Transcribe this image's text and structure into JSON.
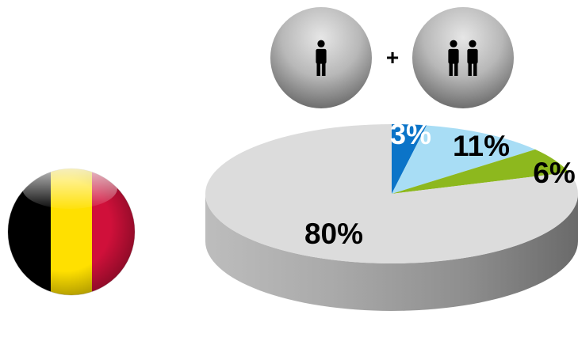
{
  "flag": {
    "country_icon": "belgium-flag-icon",
    "colors": [
      "#000000",
      "#FFE000",
      "#D0103A"
    ]
  },
  "icons": {
    "left_circle": "single-person-icon",
    "operator": "+",
    "right_circle": "two-people-icon"
  },
  "chart_data": {
    "type": "pie",
    "title": "",
    "style": "3d",
    "values": [
      3,
      11,
      6,
      80
    ],
    "labels": [
      "3%",
      "11%",
      "6%",
      "80%"
    ],
    "colors": [
      "#0B74C8",
      "#A8DDF5",
      "#8DB81E",
      "#DCDCDC"
    ],
    "label_colors": [
      "#FFFFFF",
      "#000000",
      "#000000",
      "#000000"
    ]
  }
}
